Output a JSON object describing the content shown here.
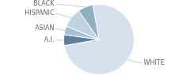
{
  "chart_data": {
    "type": "pie",
    "categories": [
      "WHITE",
      "A.I.",
      "ASIAN",
      "HISPANIC",
      "BLACK"
    ],
    "values": [
      75,
      5,
      4,
      9,
      7
    ],
    "colors": [
      "#d5e2ed",
      "#5b7f9e",
      "#a8c0cf",
      "#c0d4e0",
      "#8fafc2"
    ]
  }
}
